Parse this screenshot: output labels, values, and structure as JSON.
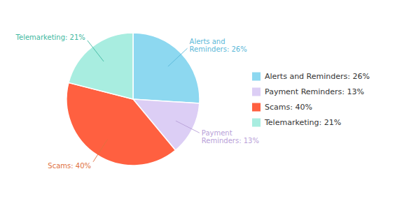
{
  "chart_data": {
    "type": "pie",
    "categories": [
      "Alerts and Reminders: 26%",
      "Payment Reminders: 13%",
      "Scams: 40%",
      "Telemarketing: 21%"
    ],
    "values": [
      26,
      13,
      40,
      21
    ],
    "colors": [
      "#8dd8f0",
      "#dccef5",
      "#ff6040",
      "#a8ede0"
    ],
    "annotations": [
      {
        "text": "Alerts and\nReminders: 26%",
        "color": "#5ab8d8"
      },
      {
        "text": "Payment\nReminders: 13%",
        "color": "#b8a0d8"
      },
      {
        "text": "Scams: 40%",
        "color": "#e07040"
      },
      {
        "text": "Telemarketing: 21%",
        "color": "#40b8a0"
      }
    ],
    "legend": "right"
  }
}
